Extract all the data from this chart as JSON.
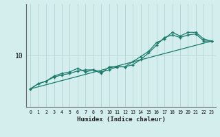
{
  "xlabel": "Humidex (Indice chaleur)",
  "ylabel": "",
  "bg_color": "#d4eeee",
  "grid_color": "#b8d8d8",
  "line_color": "#1a7a6a",
  "xlim": [
    -0.5,
    23.5
  ],
  "ylim": [
    0,
    20
  ],
  "ytick_val": 10,
  "xticks": [
    0,
    1,
    2,
    3,
    4,
    5,
    6,
    7,
    8,
    9,
    10,
    11,
    12,
    13,
    14,
    15,
    16,
    17,
    18,
    19,
    20,
    21,
    22,
    23
  ],
  "series": [
    {
      "x": [
        0,
        1,
        2,
        3,
        4,
        5,
        6,
        7,
        8,
        9,
        10,
        11,
        12,
        13,
        14,
        15,
        16,
        17,
        18,
        19,
        20,
        21,
        22,
        23
      ],
      "y": [
        3.5,
        4.5,
        5.0,
        6.0,
        6.5,
        6.8,
        7.5,
        6.8,
        7.2,
        6.5,
        7.8,
        7.8,
        7.8,
        8.8,
        9.8,
        10.8,
        12.5,
        13.2,
        14.5,
        13.8,
        14.5,
        14.5,
        13.2,
        12.8
      ],
      "marker": "+"
    },
    {
      "x": [
        0,
        1,
        2,
        3,
        4,
        5,
        6,
        7,
        8,
        9,
        10,
        11,
        12,
        13,
        14,
        15,
        16,
        17,
        18,
        19,
        20,
        21,
        22,
        23
      ],
      "y": [
        3.5,
        4.5,
        5.0,
        5.8,
        6.2,
        6.5,
        7.0,
        7.2,
        7.2,
        6.8,
        7.2,
        7.8,
        7.8,
        8.2,
        9.2,
        10.5,
        12.0,
        13.5,
        14.0,
        13.5,
        14.0,
        14.2,
        12.8,
        12.8
      ],
      "marker": "+"
    },
    {
      "x": [
        0,
        23
      ],
      "y": [
        3.5,
        12.8
      ],
      "marker": null
    }
  ]
}
